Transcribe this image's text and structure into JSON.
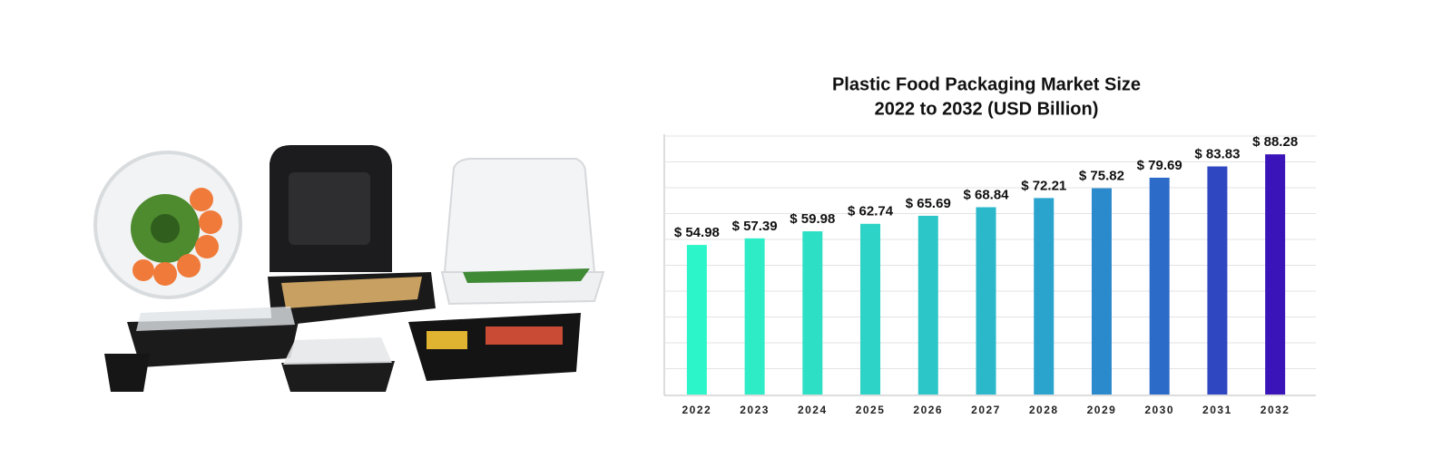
{
  "chart_data": {
    "type": "bar",
    "title": "Plastic Food Packaging Market Size",
    "subtitle": "2022 to 2032 (USD Billion)",
    "categories": [
      "2022",
      "2023",
      "2024",
      "2025",
      "2026",
      "2027",
      "2028",
      "2029",
      "2030",
      "2031",
      "2032"
    ],
    "values": [
      54.98,
      57.39,
      59.98,
      62.74,
      65.69,
      68.84,
      72.21,
      75.82,
      79.69,
      83.83,
      88.28
    ],
    "value_labels": [
      "$ 54.98",
      "$ 57.39",
      "$ 59.98",
      "$ 62.74",
      "$ 65.69",
      "$ 68.84",
      "$ 72.21",
      "$ 75.82",
      "$ 79.69",
      "$ 83.83",
      "$ 88.28"
    ],
    "colors": [
      "#2cf5c9",
      "#2decc6",
      "#2ddfc4",
      "#2dd3c6",
      "#2cc6c9",
      "#2cb8cb",
      "#2ba4cd",
      "#2b8acc",
      "#2c6bc8",
      "#3047c2",
      "#3a14b8"
    ],
    "ylim": [
      0,
      95
    ],
    "grid": true
  }
}
